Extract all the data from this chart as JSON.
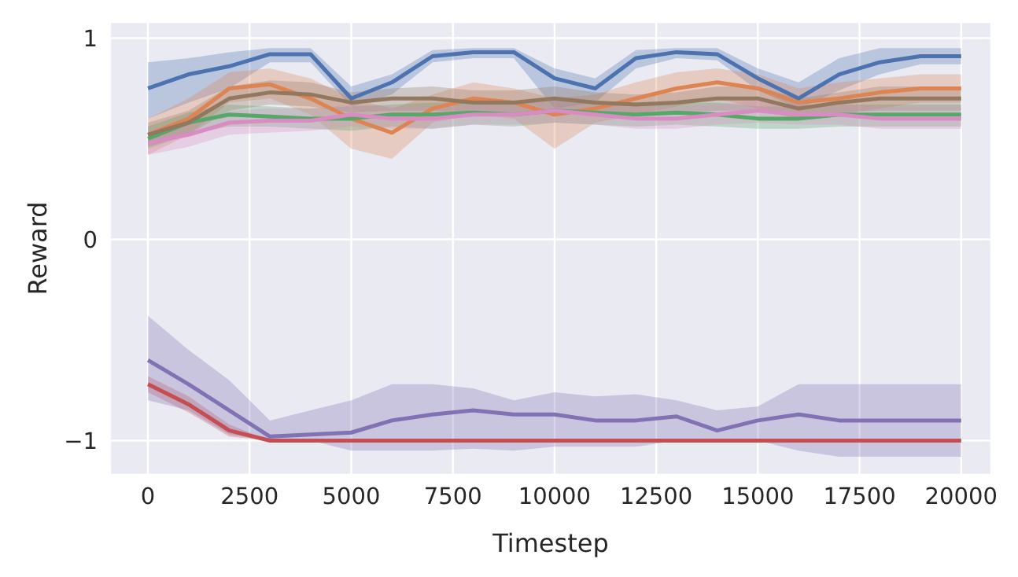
{
  "chart_data": {
    "type": "line",
    "xlabel": "Timestep",
    "ylabel": "Reward",
    "x": [
      0,
      1000,
      2000,
      3000,
      4000,
      5000,
      6000,
      7000,
      8000,
      9000,
      10000,
      11000,
      12000,
      13000,
      14000,
      15000,
      16000,
      17000,
      18000,
      19000,
      20000
    ],
    "xlim": [
      -930,
      20740
    ],
    "xticks": [
      0,
      2500,
      5000,
      7500,
      10000,
      12500,
      15000,
      17500,
      20000
    ],
    "ylim": [
      -1.17,
      1.08
    ],
    "yticks": [
      {
        "value": -1,
        "label": "−1"
      },
      0,
      1
    ],
    "grid": true,
    "legend": false,
    "marker": "none",
    "line_style": "solid",
    "series": [
      {
        "color": "#4c72b0",
        "values": [
          0.75,
          0.82,
          0.86,
          0.92,
          0.92,
          0.7,
          0.78,
          0.91,
          0.93,
          0.93,
          0.8,
          0.75,
          0.9,
          0.93,
          0.92,
          0.8,
          0.7,
          0.82,
          0.88,
          0.91,
          0.91
        ],
        "lower": [
          0.6,
          0.68,
          0.75,
          0.88,
          0.88,
          0.66,
          0.72,
          0.88,
          0.9,
          0.9,
          0.65,
          0.68,
          0.85,
          0.9,
          0.89,
          0.74,
          0.65,
          0.74,
          0.82,
          0.87,
          0.87
        ],
        "upper": [
          0.88,
          0.9,
          0.93,
          0.95,
          0.95,
          0.76,
          0.82,
          0.94,
          0.95,
          0.95,
          0.85,
          0.8,
          0.94,
          0.95,
          0.95,
          0.85,
          0.78,
          0.9,
          0.95,
          0.95,
          0.95
        ]
      },
      {
        "color": "#dd8452",
        "values": [
          0.52,
          0.6,
          0.75,
          0.77,
          0.7,
          0.6,
          0.53,
          0.65,
          0.7,
          0.68,
          0.62,
          0.65,
          0.7,
          0.75,
          0.78,
          0.75,
          0.68,
          0.7,
          0.73,
          0.75,
          0.75
        ],
        "lower": [
          0.42,
          0.52,
          0.68,
          0.7,
          0.62,
          0.45,
          0.4,
          0.58,
          0.62,
          0.6,
          0.45,
          0.58,
          0.62,
          0.66,
          0.7,
          0.65,
          0.6,
          0.62,
          0.65,
          0.68,
          0.68
        ],
        "upper": [
          0.6,
          0.7,
          0.83,
          0.85,
          0.8,
          0.7,
          0.65,
          0.72,
          0.78,
          0.75,
          0.7,
          0.72,
          0.78,
          0.83,
          0.85,
          0.82,
          0.75,
          0.78,
          0.8,
          0.82,
          0.82
        ]
      },
      {
        "color": "#55a868",
        "values": [
          0.5,
          0.58,
          0.62,
          0.61,
          0.6,
          0.6,
          0.62,
          0.62,
          0.63,
          0.62,
          0.64,
          0.63,
          0.62,
          0.63,
          0.62,
          0.6,
          0.6,
          0.62,
          0.62,
          0.62,
          0.62
        ],
        "lower": [
          0.45,
          0.52,
          0.56,
          0.56,
          0.55,
          0.54,
          0.56,
          0.55,
          0.57,
          0.56,
          0.58,
          0.57,
          0.56,
          0.57,
          0.56,
          0.55,
          0.55,
          0.56,
          0.56,
          0.56,
          0.56
        ],
        "upper": [
          0.56,
          0.63,
          0.67,
          0.66,
          0.65,
          0.66,
          0.67,
          0.68,
          0.68,
          0.68,
          0.69,
          0.68,
          0.68,
          0.68,
          0.68,
          0.66,
          0.66,
          0.67,
          0.67,
          0.67,
          0.67
        ]
      },
      {
        "color": "#c44e52",
        "values": [
          -0.72,
          -0.82,
          -0.95,
          -1.0,
          -1.0,
          -1.0,
          -1.0,
          -1.0,
          -1.0,
          -1.0,
          -1.0,
          -1.0,
          -1.0,
          -1.0,
          -1.0,
          -1.0,
          -1.0,
          -1.0,
          -1.0,
          -1.0,
          -1.0
        ],
        "lower": [
          -0.76,
          -0.86,
          -0.98,
          -1.0,
          -1.0,
          -1.0,
          -1.0,
          -1.0,
          -1.0,
          -1.0,
          -1.0,
          -1.0,
          -1.0,
          -1.0,
          -1.0,
          -1.0,
          -1.0,
          -1.0,
          -1.0,
          -1.0,
          -1.0
        ],
        "upper": [
          -0.68,
          -0.78,
          -0.92,
          -1.0,
          -1.0,
          -1.0,
          -1.0,
          -1.0,
          -1.0,
          -1.0,
          -1.0,
          -1.0,
          -1.0,
          -1.0,
          -1.0,
          -1.0,
          -1.0,
          -1.0,
          -1.0,
          -1.0,
          -1.0
        ]
      },
      {
        "color": "#8172b3",
        "values": [
          -0.6,
          -0.72,
          -0.85,
          -0.98,
          -0.97,
          -0.96,
          -0.9,
          -0.87,
          -0.85,
          -0.87,
          -0.87,
          -0.9,
          -0.9,
          -0.88,
          -0.95,
          -0.9,
          -0.87,
          -0.9,
          -0.9,
          -0.9,
          -0.9
        ],
        "lower": [
          -0.8,
          -0.85,
          -0.97,
          -1.0,
          -1.0,
          -1.05,
          -1.05,
          -1.05,
          -1.04,
          -1.05,
          -1.03,
          -1.03,
          -1.03,
          -1.0,
          -1.0,
          -1.0,
          -1.05,
          -1.08,
          -1.08,
          -1.08,
          -1.08
        ],
        "upper": [
          -0.38,
          -0.55,
          -0.7,
          -0.9,
          -0.85,
          -0.8,
          -0.72,
          -0.72,
          -0.74,
          -0.8,
          -0.76,
          -0.78,
          -0.77,
          -0.8,
          -0.85,
          -0.83,
          -0.72,
          -0.72,
          -0.72,
          -0.72,
          -0.72
        ]
      },
      {
        "color": "#937860",
        "values": [
          0.52,
          0.58,
          0.7,
          0.73,
          0.72,
          0.68,
          0.7,
          0.7,
          0.68,
          0.68,
          0.7,
          0.68,
          0.67,
          0.68,
          0.7,
          0.7,
          0.65,
          0.68,
          0.7,
          0.7,
          0.7
        ],
        "lower": [
          0.46,
          0.52,
          0.64,
          0.67,
          0.66,
          0.63,
          0.64,
          0.64,
          0.63,
          0.63,
          0.64,
          0.63,
          0.62,
          0.63,
          0.64,
          0.64,
          0.6,
          0.63,
          0.64,
          0.64,
          0.64
        ],
        "upper": [
          0.58,
          0.64,
          0.76,
          0.79,
          0.78,
          0.73,
          0.75,
          0.76,
          0.74,
          0.74,
          0.76,
          0.73,
          0.72,
          0.73,
          0.76,
          0.76,
          0.7,
          0.73,
          0.76,
          0.76,
          0.76
        ]
      },
      {
        "color": "#da8bc3",
        "values": [
          0.48,
          0.52,
          0.58,
          0.59,
          0.59,
          0.62,
          0.6,
          0.6,
          0.62,
          0.62,
          0.64,
          0.62,
          0.6,
          0.6,
          0.62,
          0.64,
          0.62,
          0.62,
          0.6,
          0.6,
          0.6
        ],
        "lower": [
          0.42,
          0.46,
          0.52,
          0.53,
          0.54,
          0.56,
          0.55,
          0.55,
          0.57,
          0.57,
          0.58,
          0.57,
          0.55,
          0.55,
          0.57,
          0.58,
          0.57,
          0.57,
          0.55,
          0.55,
          0.55
        ],
        "upper": [
          0.54,
          0.58,
          0.64,
          0.65,
          0.65,
          0.67,
          0.66,
          0.66,
          0.67,
          0.67,
          0.69,
          0.67,
          0.66,
          0.66,
          0.67,
          0.69,
          0.67,
          0.67,
          0.66,
          0.66,
          0.66
        ]
      }
    ]
  }
}
